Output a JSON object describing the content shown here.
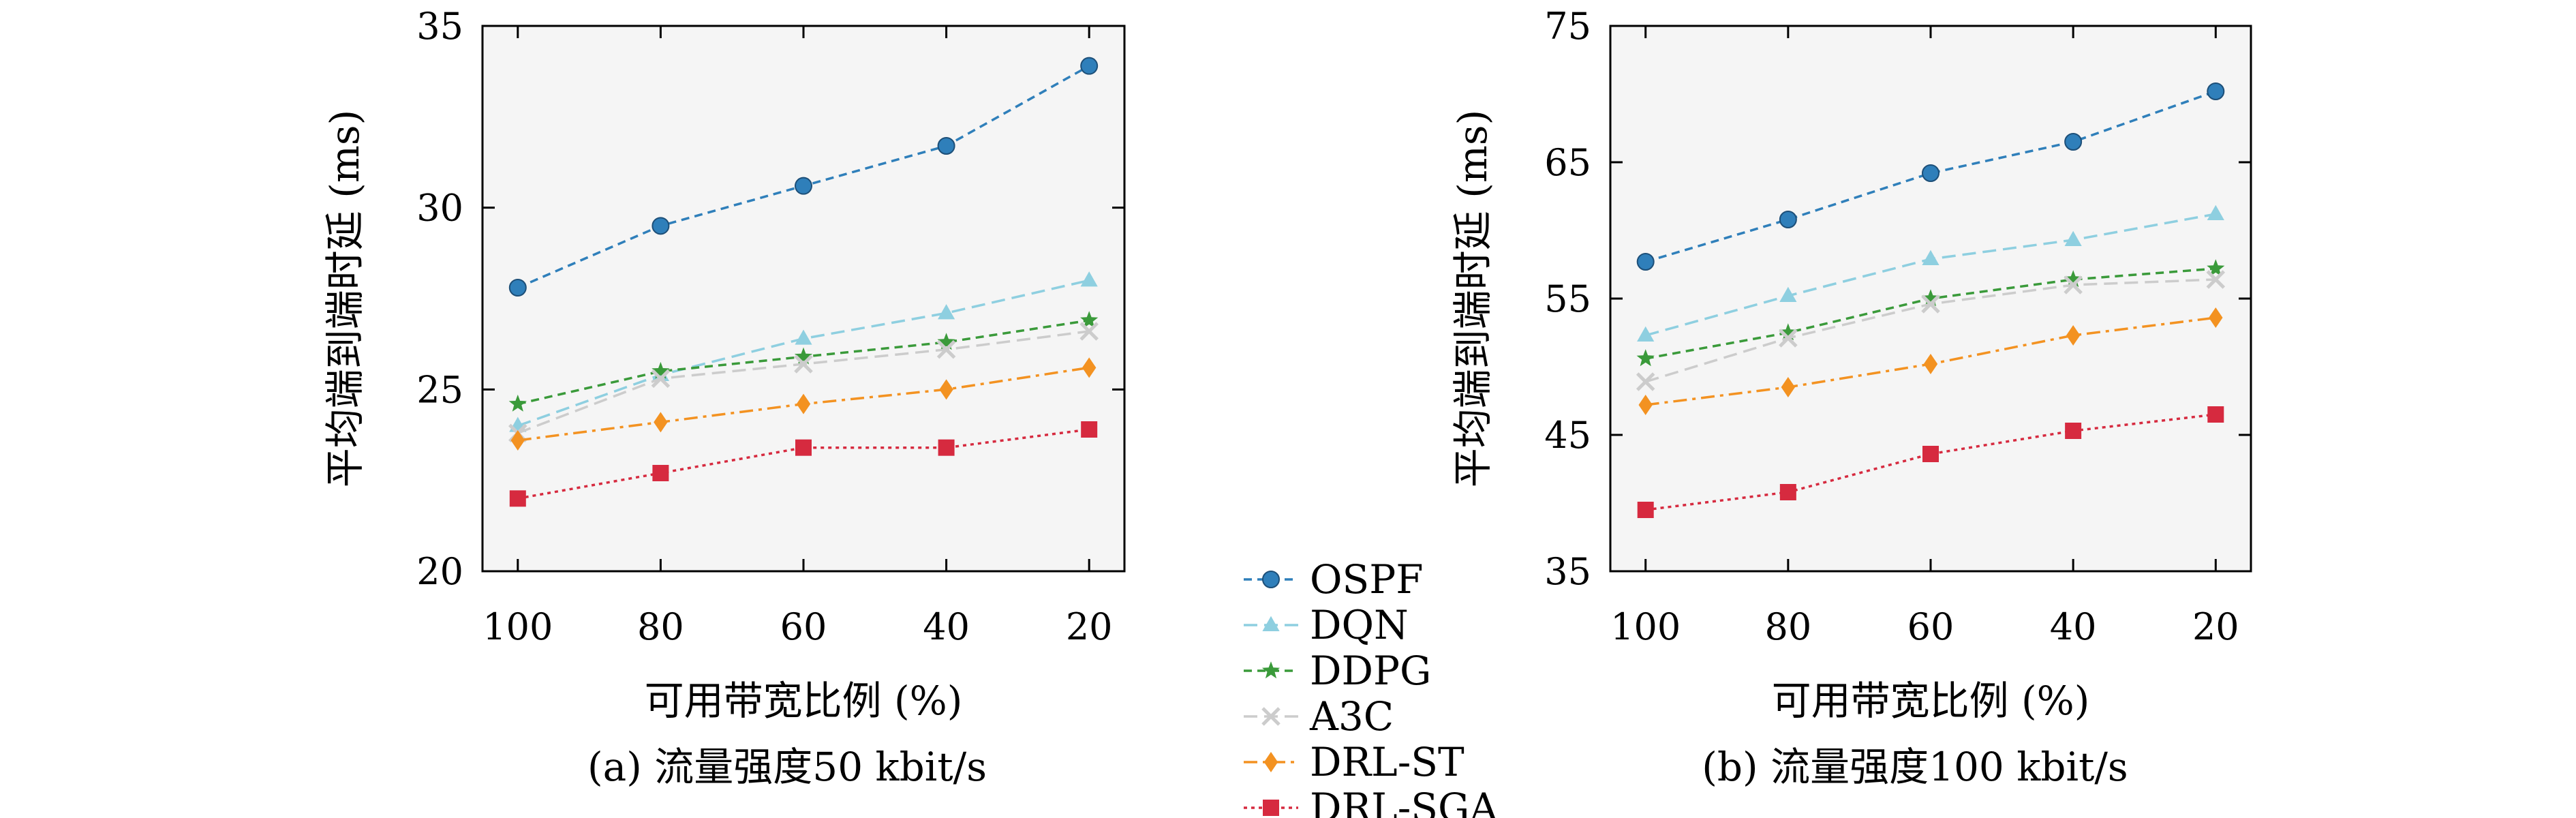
{
  "series_styles": [
    {
      "name": "OSPF",
      "color": "#2f7fba",
      "marker": "circle",
      "dash": "12,8"
    },
    {
      "name": "DQN",
      "color": "#8ecfe0",
      "marker": "triangle",
      "dash": "20,10"
    },
    {
      "name": "DDPG",
      "color": "#3a9a3a",
      "marker": "star",
      "dash": "12,8"
    },
    {
      "name": "A3C",
      "color": "#cccccc",
      "marker": "cross",
      "dash": "20,10"
    },
    {
      "name": "DRL-ST",
      "color": "#f39221",
      "marker": "diamond",
      "dash": "20,8,5,8"
    },
    {
      "name": "DRL-SGA",
      "color": "#d62a3f",
      "marker": "square",
      "dash": "5,6"
    }
  ],
  "legend": {
    "entries": [
      "OSPF",
      "DQN",
      "DDPG",
      "A3C",
      "DRL-ST",
      "DRL-SGA"
    ]
  },
  "chart_data": [
    {
      "type": "line",
      "caption": "(a) 流量强度50 kbit/s",
      "xlabel": "可用带宽比例 (%)",
      "ylabel": "平均端到端时延 (ms)",
      "categories": [
        "100",
        "80",
        "60",
        "40",
        "20"
      ],
      "ylim": [
        20,
        35
      ],
      "yticks": [
        20,
        25,
        30,
        35
      ],
      "grid": false,
      "series": [
        {
          "name": "OSPF",
          "values": [
            27.8,
            29.5,
            30.6,
            31.7,
            33.9
          ]
        },
        {
          "name": "DQN",
          "values": [
            24.0,
            25.4,
            26.4,
            27.1,
            28.0
          ]
        },
        {
          "name": "DDPG",
          "values": [
            24.6,
            25.5,
            25.9,
            26.3,
            26.9
          ]
        },
        {
          "name": "A3C",
          "values": [
            23.8,
            25.3,
            25.7,
            26.1,
            26.6
          ]
        },
        {
          "name": "DRL-ST",
          "values": [
            23.6,
            24.1,
            24.6,
            25.0,
            25.6
          ]
        },
        {
          "name": "DRL-SGA",
          "values": [
            22.0,
            22.7,
            23.4,
            23.4,
            23.9
          ]
        }
      ]
    },
    {
      "type": "line",
      "caption": "(b) 流量强度100 kbit/s",
      "xlabel": "可用带宽比例 (%)",
      "ylabel": "平均端到端时延 (ms)",
      "categories": [
        "100",
        "80",
        "60",
        "40",
        "20"
      ],
      "ylim": [
        35,
        75
      ],
      "yticks": [
        35,
        45,
        55,
        65,
        75
      ],
      "grid": false,
      "series": [
        {
          "name": "OSPF",
          "values": [
            57.7,
            60.8,
            64.2,
            66.5,
            70.2
          ]
        },
        {
          "name": "DQN",
          "values": [
            52.3,
            55.2,
            57.9,
            59.3,
            61.2
          ]
        },
        {
          "name": "DDPG",
          "values": [
            50.6,
            52.5,
            55.0,
            56.4,
            57.2
          ]
        },
        {
          "name": "A3C",
          "values": [
            48.9,
            52.1,
            54.6,
            56.0,
            56.4
          ]
        },
        {
          "name": "DRL-ST",
          "values": [
            47.2,
            48.5,
            50.2,
            52.3,
            53.6
          ]
        },
        {
          "name": "DRL-SGA",
          "values": [
            39.5,
            40.8,
            43.6,
            45.3,
            46.5
          ]
        }
      ]
    }
  ]
}
